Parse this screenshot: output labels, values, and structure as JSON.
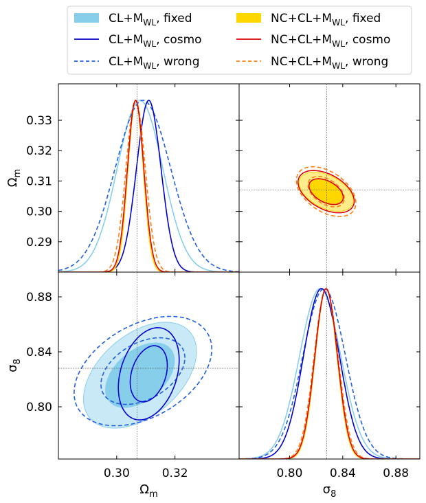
{
  "chart_data": {
    "type": "corner",
    "parameters": [
      {
        "name": "Ω",
        "sub": "m",
        "range": [
          0.28,
          0.342
        ],
        "ticks": [
          0.29,
          0.3,
          0.31,
          0.32,
          0.33
        ],
        "tick_labels": [
          "0.29",
          "0.30",
          "0.31",
          "0.32",
          "0.33"
        ],
        "bottom_ticks": [
          0.3,
          0.32
        ],
        "bottom_tick_labels": [
          "0.30",
          "0.32"
        ],
        "fiducial": 0.307
      },
      {
        "name": "σ",
        "sub": "8",
        "range": [
          0.762,
          0.898
        ],
        "ticks": [
          0.8,
          0.84,
          0.88
        ],
        "tick_labels": [
          "0.80",
          "0.84",
          "0.88"
        ],
        "fiducial": 0.828
      }
    ],
    "legend": {
      "position": "top",
      "columns": 2,
      "entries": [
        {
          "main": "CL+M",
          "sub": "WL",
          "suffix": ", fixed",
          "style": "fill",
          "color": "#87ceeb"
        },
        {
          "main": "NC+CL+M",
          "sub": "WL",
          "suffix": ", fixed",
          "style": "fill",
          "color": "#ffd700"
        },
        {
          "main": "CL+M",
          "sub": "WL",
          "suffix": ", cosmo",
          "style": "solid",
          "color": "#0000cd"
        },
        {
          "main": "NC+CL+M",
          "sub": "WL",
          "suffix": ", cosmo",
          "style": "solid",
          "color": "#dd0000"
        },
        {
          "main": "CL+M",
          "sub": "WL",
          "suffix": ", wrong",
          "style": "dashed",
          "color": "#1f5fe0"
        },
        {
          "main": "NC+CL+M",
          "sub": "WL",
          "suffix": ", wrong",
          "style": "dashed",
          "color": "#ff7f0e"
        }
      ]
    },
    "series": [
      {
        "name": "CL+MWL, fixed",
        "color": "#87ceeb",
        "kind": "fill",
        "mean": [
          0.308,
          0.823
        ],
        "sigma": [
          0.0078,
          0.0155
        ],
        "rho": 0.45
      },
      {
        "name": "CL+MWL, cosmo",
        "color": "#0000cd",
        "kind": "solid",
        "mean": [
          0.311,
          0.824
        ],
        "sigma": [
          0.0042,
          0.0135
        ],
        "rho": 0.3
      },
      {
        "name": "CL+MWL, wrong",
        "color": "#1f5fe0",
        "kind": "dashed",
        "mean": [
          0.309,
          0.826
        ],
        "sigma": [
          0.0095,
          0.016
        ],
        "rho": 0.4
      },
      {
        "name": "NC+CL+MWL, fixed",
        "color": "#ffd700",
        "kind": "fill",
        "mean": [
          0.3065,
          0.8275
        ],
        "sigma": [
          0.0026,
          0.0082
        ],
        "rho": -0.45
      },
      {
        "name": "NC+CL+MWL, cosmo",
        "color": "#dd0000",
        "kind": "solid",
        "mean": [
          0.3065,
          0.8275
        ],
        "sigma": [
          0.0028,
          0.0085
        ],
        "rho": -0.45
      },
      {
        "name": "NC+CL+MWL, wrong",
        "color": "#ff7f0e",
        "kind": "dashed",
        "mean": [
          0.3065,
          0.8275
        ],
        "sigma": [
          0.0033,
          0.009
        ],
        "rho": -0.45
      }
    ],
    "grid": false
  }
}
